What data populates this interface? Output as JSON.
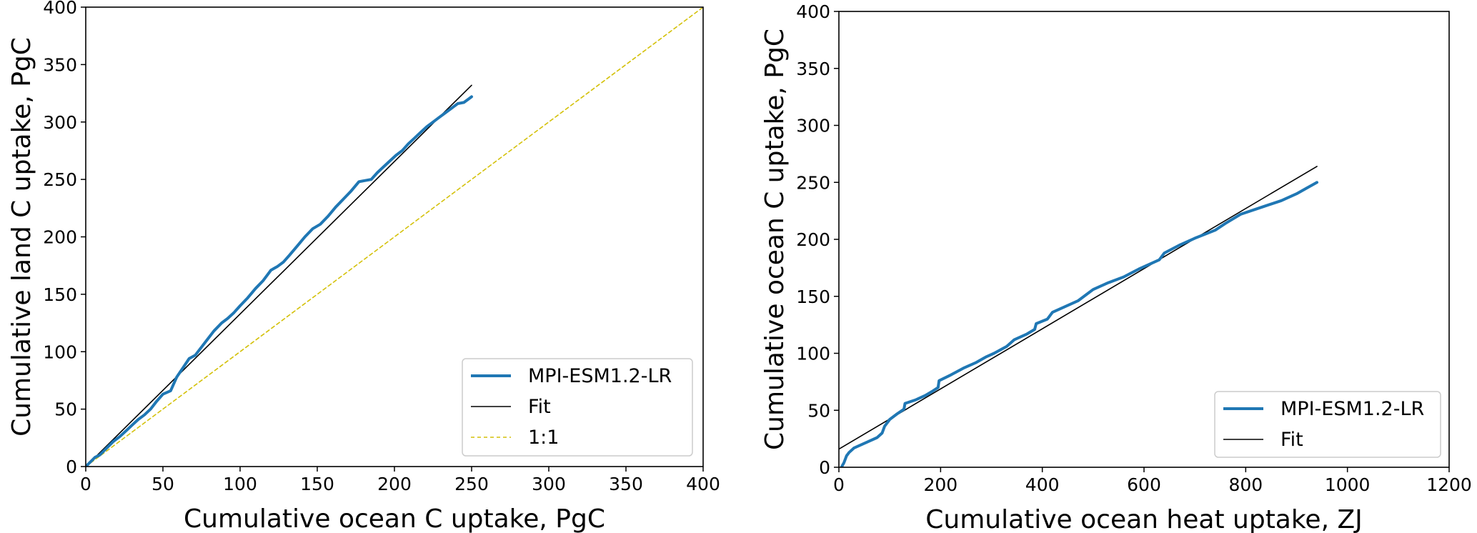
{
  "chart_data": [
    {
      "type": "line",
      "xlabel": "Cumulative ocean C uptake, PgC",
      "ylabel": "Cumulative land C uptake, PgC",
      "xlim": [
        0,
        400
      ],
      "ylim": [
        0,
        400
      ],
      "xticks": [
        "0",
        "50",
        "100",
        "150",
        "200",
        "250",
        "300",
        "350",
        "400"
      ],
      "yticks": [
        "0",
        "50",
        "100",
        "150",
        "200",
        "250",
        "300",
        "350",
        "400"
      ],
      "grid": false,
      "legend_position": "lower-right",
      "series": [
        {
          "name": "MPI-ESM1.2-LR",
          "color": "#1f77b4",
          "style": "solid-thick",
          "x": [
            0,
            3,
            6,
            9,
            12,
            15,
            18,
            22,
            26,
            30,
            34,
            38,
            42,
            46,
            50,
            55,
            59,
            63,
            67,
            71,
            75,
            79,
            83,
            88,
            92,
            96,
            100,
            105,
            110,
            115,
            120,
            124,
            128,
            132,
            137,
            142,
            147,
            152,
            157,
            162,
            167,
            172,
            177,
            181,
            185,
            189,
            193,
            197,
            201,
            205,
            209,
            213,
            217,
            221,
            225,
            229,
            233,
            237,
            241,
            245,
            248,
            250
          ],
          "y": [
            0,
            4,
            8,
            10,
            14,
            18,
            22,
            26,
            31,
            36,
            41,
            45,
            50,
            57,
            63,
            66,
            78,
            86,
            94,
            97,
            104,
            111,
            118,
            125,
            129,
            134,
            140,
            147,
            155,
            162,
            171,
            174,
            178,
            184,
            192,
            200,
            207,
            211,
            218,
            226,
            233,
            240,
            248,
            249,
            250,
            256,
            261,
            266,
            271,
            275,
            281,
            286,
            291,
            296,
            300,
            304,
            308,
            312,
            316,
            317,
            320,
            322
          ]
        },
        {
          "name": "Fit",
          "color": "#000000",
          "style": "solid-thin",
          "x": [
            0,
            250
          ],
          "y": [
            0,
            332
          ]
        },
        {
          "name": "1:1",
          "color": "#d4c10a",
          "style": "dashed",
          "x": [
            0,
            400
          ],
          "y": [
            0,
            400
          ]
        }
      ]
    },
    {
      "type": "line",
      "xlabel": "Cumulative ocean heat uptake, ZJ",
      "ylabel": "Cumulative ocean C uptake, PgC",
      "xlim": [
        0,
        1200
      ],
      "ylim": [
        0,
        400
      ],
      "xticks": [
        "0",
        "200",
        "400",
        "600",
        "800",
        "1000",
        "1200"
      ],
      "yticks": [
        "0",
        "50",
        "100",
        "150",
        "200",
        "250",
        "300",
        "350",
        "400"
      ],
      "grid": false,
      "legend_position": "lower-right",
      "series": [
        {
          "name": "MPI-ESM1.2-LR",
          "color": "#1f77b4",
          "style": "solid-thick",
          "x": [
            5,
            10,
            15,
            20,
            30,
            40,
            55,
            75,
            85,
            90,
            100,
            115,
            128,
            130,
            150,
            170,
            185,
            195,
            197,
            220,
            245,
            270,
            290,
            305,
            330,
            345,
            370,
            385,
            388,
            410,
            420,
            445,
            470,
            500,
            530,
            560,
            590,
            610,
            630,
            640,
            670,
            700,
            740,
            760,
            790,
            830,
            870,
            900,
            920,
            940
          ],
          "y": [
            0,
            4,
            10,
            13,
            17,
            19,
            22,
            26,
            30,
            36,
            42,
            47,
            51,
            56,
            59,
            63,
            67,
            70,
            76,
            81,
            87,
            92,
            97,
            100,
            106,
            112,
            117,
            121,
            126,
            130,
            136,
            141,
            146,
            156,
            162,
            167,
            174,
            178,
            182,
            188,
            195,
            201,
            208,
            214,
            222,
            228,
            234,
            240,
            245,
            250
          ]
        },
        {
          "name": "Fit",
          "color": "#000000",
          "style": "solid-thin",
          "x": [
            0,
            940
          ],
          "y": [
            16,
            264
          ]
        }
      ]
    }
  ]
}
